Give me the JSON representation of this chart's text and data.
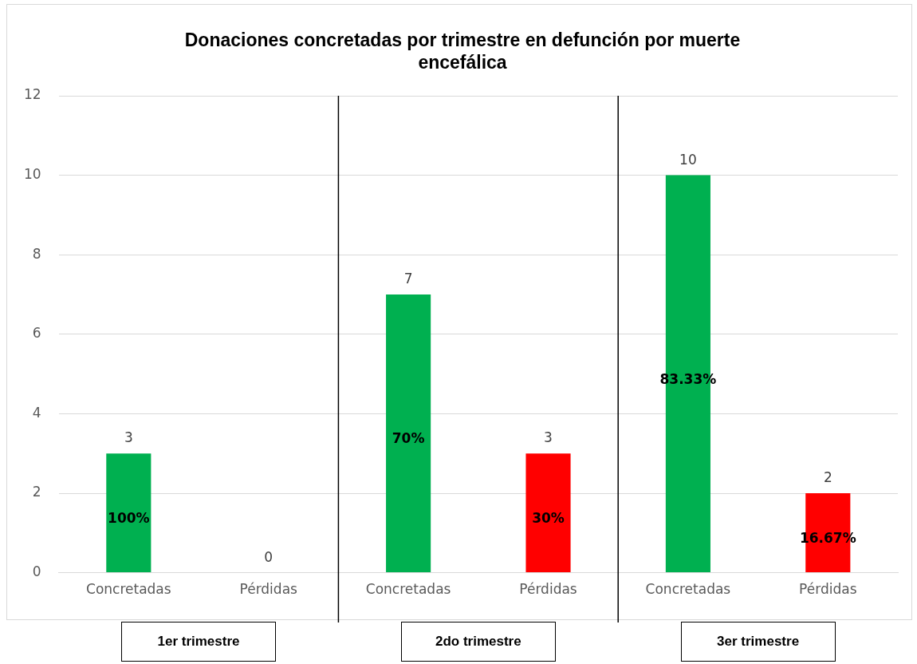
{
  "chart_data": {
    "type": "bar",
    "title": "Donaciones concretadas por trimestre en defunción por muerte encefálica",
    "categories": [
      "Concretadas",
      "Pérdidas",
      "Concretadas",
      "Pérdidas",
      "Concretadas",
      "Pérdidas"
    ],
    "values": [
      3,
      0,
      7,
      3,
      10,
      2
    ],
    "colors": [
      "#00b050",
      "#ff0000",
      "#00b050",
      "#ff0000",
      "#00b050",
      "#ff0000"
    ],
    "data_labels": true,
    "ylim": [
      0,
      12
    ],
    "yticks": [
      0,
      2,
      4,
      6,
      8,
      10,
      12
    ],
    "grid": "y",
    "legend": false,
    "annotations": [
      "100%",
      "70%",
      "30%",
      "83.33%",
      "16.67%",
      "1er trimestre",
      "2do trimestre",
      "3er trimestre"
    ]
  }
}
